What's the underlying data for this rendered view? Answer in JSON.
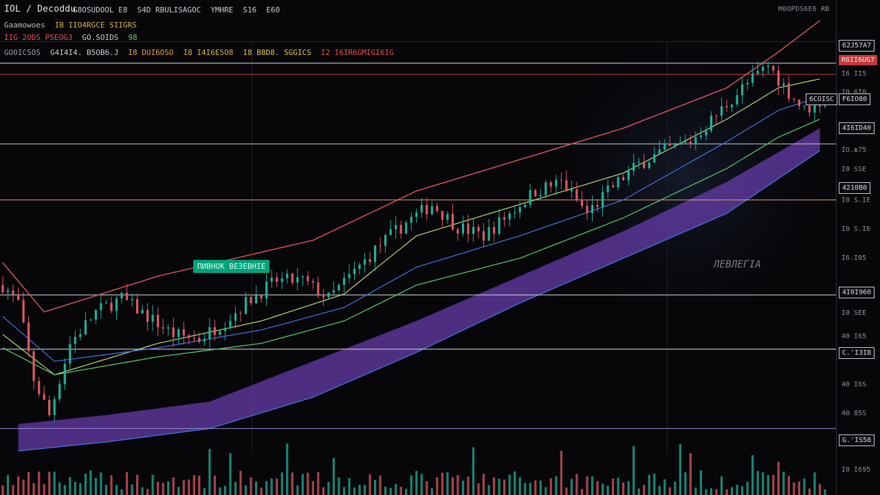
{
  "header": {
    "symbol": "IOL / Decoddu",
    "info_items": [
      "G8OSUDOOL E8",
      "S4D RBULISAGOC",
      "YMHRE",
      "S16",
      "E60"
    ],
    "top_right": "M0OPDS6E6 RB",
    "line2": [
      {
        "text": "Gaamowoes",
        "color": "#b9bcc4"
      },
      {
        "text": "IB IIO4RGCE SIIGRS",
        "color": "#d3b24a"
      }
    ],
    "line3": [
      {
        "text": "IIG 2ODS PSEOG3",
        "color": "#e0524f"
      },
      {
        "text": "GO.SOIDS",
        "color": "#c9ccd3"
      },
      {
        "text": "98",
        "color": "#78c46a"
      }
    ],
    "line4": [
      {
        "text": "GOOICSOS",
        "color": "#9aa0aa"
      },
      {
        "text": "G4I4I4. B5OB6.J",
        "color": "#c9ccd3"
      },
      {
        "text": "I8 DUI6OSO",
        "color": "#e2a33c"
      },
      {
        "text": "I8 I4I6E5O8",
        "color": "#d3b24a"
      },
      {
        "text": "I8 B8D8. SGGICS",
        "color": "#e0c34a"
      },
      {
        "text": "I2 I6IR6GMIGI6IG",
        "color": "#e0524f"
      }
    ]
  },
  "labels": {
    "badge": "ПИВНОК ВЕЗЕВНIЕ",
    "watermark": "ЛЕВЛЕГІА"
  },
  "price_tags": [
    {
      "text": "62J57A7",
      "style": "outline"
    },
    {
      "text": "R6II6UG7",
      "style": "red"
    },
    {
      "text": "6COISC",
      "style": "outline"
    },
    {
      "text": "F6IO80",
      "style": "outline"
    },
    {
      "text": "4I6ID40",
      "style": "outline"
    },
    {
      "text": "4210B0",
      "style": "outline"
    },
    {
      "text": "4I0I960",
      "style": "outline"
    },
    {
      "text": "C.'I3I8",
      "style": "outline"
    },
    {
      "text": "G.'IS58",
      "style": "outline"
    }
  ],
  "y_ticks": [
    "I6 II5",
    "I0 6I0",
    "IO.ʙ75",
    "I0 SSE",
    "I0 S.IE",
    "I0 S.I6",
    "I6.I05",
    "I0 SEE",
    "40 I65",
    "40 I6S",
    "40 85S",
    "I0 I695"
  ],
  "colors": {
    "up": "#1fb39a",
    "down": "#e05a66",
    "envelope": "#d8525a",
    "ma_fast": "#b9e07a",
    "ma_mid": "#3f6fd8",
    "ma_slow": "#55c86a",
    "cloud": "#6a3fb0",
    "level_line": "#c8ccd4",
    "level_orange": "#f0a070",
    "level_purple": "#9a8ed8",
    "red_line": "#c83a3a"
  },
  "chart_data": {
    "type": "candlestick",
    "title": "",
    "xlabel": "",
    "ylabel": "",
    "ylim": [
      0,
      100
    ],
    "grid": false,
    "levels": [
      {
        "label": "62J57A7",
        "value": 90.5,
        "color": "level_line"
      },
      {
        "label": "R6II6UG7",
        "value": 88,
        "color": "red_line"
      },
      {
        "label": "4I6ID40",
        "value": 72.5,
        "color": "level_line"
      },
      {
        "label": "4210B0",
        "value": 60,
        "color": "level_orange"
      },
      {
        "label": "4I0I960",
        "value": 38.8,
        "color": "level_line"
      },
      {
        "label": "C.'I3I8",
        "value": 26.7,
        "color": "level_line"
      },
      {
        "label": "G.'IS58",
        "value": 9,
        "color": "level_purple"
      }
    ],
    "anchors": [
      [
        0,
        41
      ],
      [
        3,
        37
      ],
      [
        6,
        20
      ],
      [
        9,
        12
      ],
      [
        13,
        28
      ],
      [
        18,
        35
      ],
      [
        23,
        38
      ],
      [
        28,
        34
      ],
      [
        33,
        30
      ],
      [
        38,
        29
      ],
      [
        43,
        33
      ],
      [
        48,
        38
      ],
      [
        53,
        42
      ],
      [
        58,
        42
      ],
      [
        63,
        38
      ],
      [
        68,
        44
      ],
      [
        73,
        50
      ],
      [
        78,
        55
      ],
      [
        83,
        59
      ],
      [
        88,
        54
      ],
      [
        93,
        52
      ],
      [
        98,
        57
      ],
      [
        103,
        62
      ],
      [
        108,
        64
      ],
      [
        113,
        57
      ],
      [
        118,
        63
      ],
      [
        123,
        68
      ],
      [
        128,
        71
      ],
      [
        133,
        73
      ],
      [
        138,
        79
      ],
      [
        143,
        85
      ],
      [
        148,
        90
      ],
      [
        152,
        84
      ],
      [
        155,
        80
      ],
      [
        158,
        82
      ]
    ],
    "envelope": [
      [
        0,
        46
      ],
      [
        8,
        35
      ],
      [
        30,
        43
      ],
      [
        60,
        51
      ],
      [
        80,
        62
      ],
      [
        100,
        69
      ],
      [
        120,
        76
      ],
      [
        140,
        85
      ],
      [
        150,
        93
      ],
      [
        158,
        100
      ]
    ],
    "ma_fast": [
      [
        0,
        30
      ],
      [
        10,
        21
      ],
      [
        30,
        28
      ],
      [
        50,
        33
      ],
      [
        66,
        39
      ],
      [
        80,
        52
      ],
      [
        100,
        59
      ],
      [
        120,
        66
      ],
      [
        140,
        78
      ],
      [
        150,
        85
      ],
      [
        158,
        87
      ]
    ],
    "ma_mid": [
      [
        0,
        34
      ],
      [
        10,
        24
      ],
      [
        30,
        27
      ],
      [
        50,
        31
      ],
      [
        66,
        36
      ],
      [
        80,
        45
      ],
      [
        100,
        52
      ],
      [
        120,
        60
      ],
      [
        140,
        73
      ],
      [
        150,
        80
      ],
      [
        158,
        83
      ]
    ],
    "ma_slow": [
      [
        0,
        27
      ],
      [
        10,
        21
      ],
      [
        30,
        25
      ],
      [
        50,
        28
      ],
      [
        66,
        33
      ],
      [
        80,
        41
      ],
      [
        100,
        47
      ],
      [
        120,
        56
      ],
      [
        140,
        67
      ],
      [
        150,
        74
      ],
      [
        158,
        78
      ]
    ],
    "cloud_upper": [
      [
        3,
        10
      ],
      [
        20,
        12
      ],
      [
        40,
        15
      ],
      [
        60,
        24
      ],
      [
        80,
        33
      ],
      [
        100,
        43
      ],
      [
        120,
        53
      ],
      [
        140,
        64
      ],
      [
        158,
        76
      ]
    ],
    "cloud_lower": [
      [
        3,
        4
      ],
      [
        20,
        6
      ],
      [
        40,
        9
      ],
      [
        60,
        16
      ],
      [
        80,
        26
      ],
      [
        100,
        37
      ],
      [
        120,
        47
      ],
      [
        140,
        57
      ],
      [
        158,
        71
      ]
    ]
  }
}
